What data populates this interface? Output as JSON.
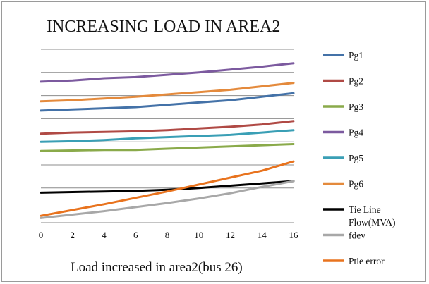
{
  "chart_data": {
    "type": "line",
    "title": "INCREASING LOAD IN AREA2",
    "xlabel": "Load increased in area2(bus 26)",
    "ylabel": "",
    "x_ticks": [
      "0",
      "2",
      "4",
      "6",
      "8",
      "10",
      "12",
      "14",
      "16"
    ],
    "x": [
      0,
      2,
      4,
      6,
      8,
      10,
      12,
      14,
      16
    ],
    "grid": "horizontal",
    "legend_position": "right",
    "series": [
      {
        "name": "Pg1",
        "color": "#4472a8",
        "values": [
          8.7,
          8.8,
          8.9,
          9.0,
          9.2,
          9.4,
          9.6,
          9.9,
          10.2
        ]
      },
      {
        "name": "Pg2",
        "color": "#b04a45",
        "values": [
          6.7,
          6.8,
          6.85,
          6.9,
          7.0,
          7.15,
          7.3,
          7.5,
          7.8
        ]
      },
      {
        "name": "Pg3",
        "color": "#8aaa4a",
        "values": [
          5.2,
          5.25,
          5.3,
          5.3,
          5.4,
          5.5,
          5.6,
          5.7,
          5.8
        ]
      },
      {
        "name": "Pg4",
        "color": "#7c5a9f",
        "values": [
          11.2,
          11.3,
          11.5,
          11.6,
          11.8,
          12.0,
          12.25,
          12.5,
          12.8
        ]
      },
      {
        "name": "Pg5",
        "color": "#3a9fb5",
        "values": [
          6.0,
          6.05,
          6.15,
          6.3,
          6.4,
          6.5,
          6.6,
          6.8,
          7.0
        ]
      },
      {
        "name": "Pg6",
        "color": "#e48a3c",
        "values": [
          9.5,
          9.6,
          9.75,
          9.9,
          10.1,
          10.3,
          10.5,
          10.8,
          11.1
        ]
      },
      {
        "name": "Tie Line Flow(MVA)",
        "color": "#000000",
        "values": [
          1.6,
          1.65,
          1.7,
          1.75,
          1.85,
          2.0,
          2.2,
          2.4,
          2.6
        ]
      },
      {
        "name": "fdev",
        "color": "#a8a8a8",
        "values": [
          -0.6,
          -0.3,
          0.0,
          0.35,
          0.7,
          1.1,
          1.55,
          2.1,
          2.6
        ]
      },
      {
        "name": "Ptie error",
        "color": "#e8731e",
        "values": [
          -0.4,
          0.1,
          0.6,
          1.15,
          1.7,
          2.3,
          2.9,
          3.5,
          4.3
        ]
      }
    ],
    "ylim": [
      -1,
      14
    ],
    "gridlines": [
      2,
      4,
      6,
      8,
      10,
      12,
      14
    ]
  }
}
